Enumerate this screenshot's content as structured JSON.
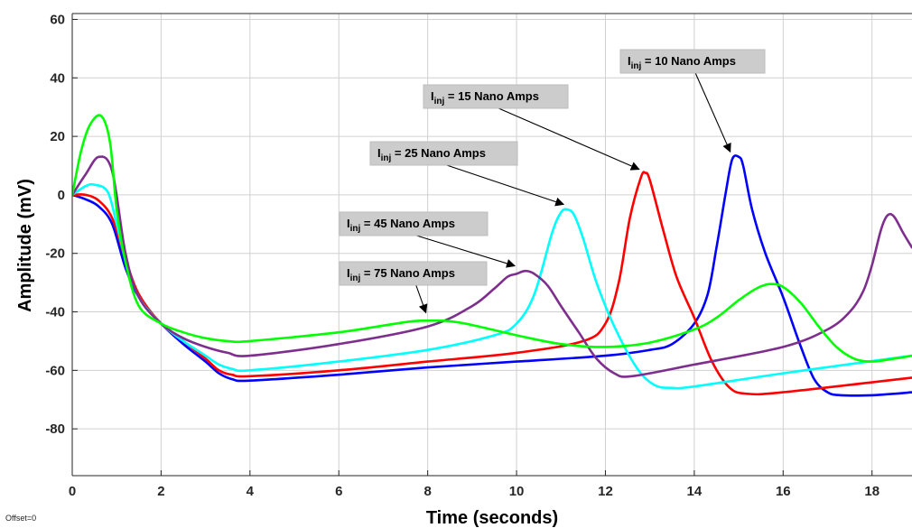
{
  "footer": {
    "offset_label": "Offset=0"
  },
  "chart_data": {
    "type": "line",
    "xlabel": "Time (seconds)",
    "ylabel": "Amplitude (mV)",
    "xlim": [
      0,
      18.9
    ],
    "ylim": [
      -96,
      62
    ],
    "xticks": [
      0,
      2,
      4,
      6,
      8,
      10,
      12,
      14,
      16,
      18
    ],
    "yticks": [
      60,
      40,
      20,
      0,
      -20,
      -40,
      -60,
      -80
    ],
    "grid": true,
    "colors": {
      "grid": "#d0d0d0",
      "axes": "#262626",
      "annotation_bg": "#cccccc"
    },
    "series": [
      {
        "color": "#0000ff",
        "x": [
          0,
          0.3,
          0.6,
          0.9,
          1.2,
          1.5,
          2.0,
          2.5,
          3.0,
          3.3,
          3.6,
          4.0,
          6,
          8,
          10,
          12,
          13,
          13.5,
          14,
          14.3,
          14.5,
          14.7,
          14.85,
          15.0,
          15.1,
          15.3,
          15.6,
          16.0,
          16.4,
          16.7,
          17.0,
          17.3,
          18,
          18.9
        ],
        "y": [
          0,
          -1.5,
          -4,
          -10,
          -25,
          -35,
          -44,
          -51,
          -57,
          -61,
          -63,
          -63.5,
          -61.5,
          -59,
          -57,
          -55,
          -53,
          -51,
          -44,
          -34,
          -18,
          0,
          12,
          13,
          10,
          -5,
          -20,
          -35,
          -52,
          -63,
          -67.5,
          -68.5,
          -68.5,
          -67.5
        ]
      },
      {
        "color": "#ff0000",
        "x": [
          0,
          0.3,
          0.6,
          0.9,
          1.2,
          1.5,
          2.0,
          2.5,
          3.0,
          3.3,
          3.6,
          4.0,
          6,
          8,
          10,
          11.5,
          12.0,
          12.3,
          12.55,
          12.8,
          12.9,
          13.0,
          13.3,
          13.6,
          14.0,
          14.4,
          14.8,
          15.2,
          16,
          18.9
        ],
        "y": [
          0,
          0,
          -2,
          -8,
          -22,
          -34,
          -44,
          -50,
          -56,
          -60,
          -61.5,
          -62,
          -60,
          -57,
          -54,
          -50,
          -44,
          -30,
          -8,
          6,
          7.5,
          5,
          -12,
          -28,
          -42,
          -57,
          -66,
          -68,
          -67.5,
          -62.5
        ]
      },
      {
        "color": "#00ffff",
        "x": [
          0,
          0.3,
          0.5,
          0.8,
          1.0,
          1.2,
          1.5,
          2.0,
          2.5,
          3.0,
          3.3,
          3.6,
          4.0,
          6,
          8,
          9.5,
          10.0,
          10.4,
          10.8,
          11.0,
          11.15,
          11.3,
          11.5,
          11.8,
          12.2,
          12.7,
          13.1,
          13.5,
          14,
          16,
          18.9
        ],
        "y": [
          0,
          3,
          3.5,
          1,
          -10,
          -22,
          -35,
          -44,
          -50,
          -55,
          -58,
          -59.5,
          -60,
          -57,
          -53,
          -48,
          -44,
          -34,
          -13,
          -6,
          -5,
          -7,
          -15,
          -30,
          -45,
          -59,
          -65,
          -66,
          -65.5,
          -61,
          -55
        ]
      },
      {
        "color": "#7e2f8e",
        "x": [
          0,
          0.3,
          0.6,
          0.9,
          1.2,
          1.5,
          2.0,
          2.5,
          3.0,
          3.5,
          4.0,
          6,
          8,
          9.0,
          9.5,
          9.8,
          10.0,
          10.2,
          10.4,
          10.7,
          11.0,
          11.4,
          11.8,
          12.2,
          12.6,
          14,
          16,
          17,
          17.5,
          17.8,
          18.0,
          18.2,
          18.35,
          18.5,
          18.7,
          18.9
        ],
        "y": [
          0,
          7,
          13,
          8,
          -20,
          -35,
          -44,
          -49,
          -52,
          -54,
          -55,
          -51,
          -45,
          -38,
          -32,
          -28,
          -27,
          -26,
          -27,
          -31,
          -38,
          -47,
          -56,
          -61,
          -62,
          -58,
          -52,
          -46,
          -40,
          -33,
          -24,
          -12,
          -7,
          -7.5,
          -13,
          -18
        ]
      },
      {
        "color": "#00ff00",
        "x": [
          0,
          0.2,
          0.4,
          0.65,
          0.85,
          1.0,
          1.2,
          1.5,
          2.0,
          2.5,
          3.0,
          3.5,
          4.0,
          6,
          7.5,
          8.0,
          8.5,
          9.0,
          10,
          11,
          12,
          13,
          14,
          14.5,
          15,
          15.4,
          15.7,
          16.0,
          16.4,
          16.8,
          17.2,
          17.6,
          18,
          18.5,
          18.9
        ],
        "y": [
          0,
          15,
          24,
          27,
          18,
          -5,
          -23,
          -38,
          -44,
          -47,
          -49,
          -50,
          -50,
          -47,
          -43.5,
          -43,
          -43.2,
          -44.5,
          -48,
          -51,
          -52,
          -50.5,
          -46,
          -42,
          -36,
          -32,
          -30.5,
          -31.5,
          -37,
          -45,
          -52,
          -56,
          -57,
          -56,
          -55
        ]
      }
    ],
    "annotations": [
      {
        "label": "I",
        "sub": "inj",
        "rest": " = 10 Nano Amps",
        "target": [
          14.85,
          13.5
        ]
      },
      {
        "label": "I",
        "sub": "inj",
        "rest": " = 15 Nano Amps",
        "target": [
          12.8,
          7.5
        ]
      },
      {
        "label": "I",
        "sub": "inj",
        "rest": " = 25 Nano Amps",
        "target": [
          11.1,
          -4.5
        ]
      },
      {
        "label": "I",
        "sub": "inj",
        "rest": " = 45 Nano Amps",
        "target": [
          10.0,
          -25.5
        ]
      },
      {
        "label": "I",
        "sub": "inj",
        "rest": " = 75 Nano Amps",
        "target": [
          8.0,
          -41.5
        ]
      }
    ]
  }
}
